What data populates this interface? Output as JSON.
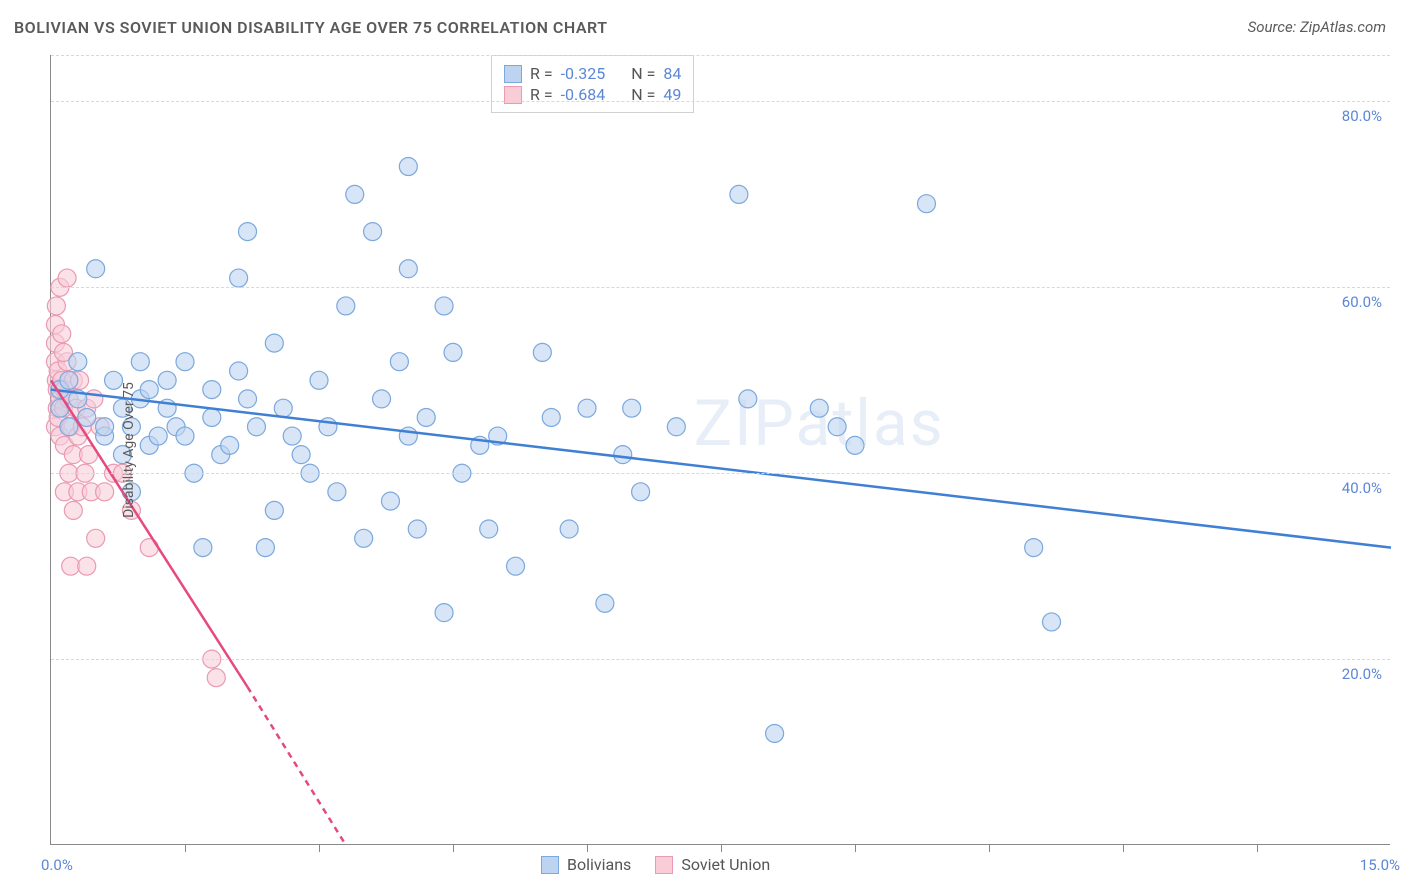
{
  "title": "BOLIVIAN VS SOVIET UNION DISABILITY AGE OVER 75 CORRELATION CHART",
  "source_prefix": "Source: ",
  "source": "ZipAtlas.com",
  "ylabel": "Disability Age Over 75",
  "watermark": "ZIPatlas",
  "chart": {
    "type": "scatter",
    "xlim": [
      0,
      15
    ],
    "ylim": [
      0,
      85
    ],
    "x_start_label": "0.0%",
    "x_end_label": "15.0%",
    "y_ticks": [
      20,
      40,
      60,
      80
    ],
    "y_tick_labels": [
      "20.0%",
      "40.0%",
      "60.0%",
      "80.0%"
    ],
    "x_tick_positions": [
      1.5,
      3.0,
      4.5,
      6.0,
      7.5,
      9.0,
      10.5,
      12.0,
      13.5
    ],
    "grid_color": "#d8d8d8",
    "background_color": "#ffffff",
    "marker_radius": 9,
    "series": {
      "bolivians": {
        "label": "Bolivians",
        "fill": "#bcd4f0",
        "stroke": "#7ba8de",
        "line_color": "#3f7fd4",
        "line_width": 2.5,
        "line_y1": 49,
        "line_y2": 32,
        "R": "-0.325",
        "N": "84",
        "points": [
          [
            0.1,
            49
          ],
          [
            0.1,
            47
          ],
          [
            0.2,
            50
          ],
          [
            0.2,
            45
          ],
          [
            0.3,
            48
          ],
          [
            0.3,
            52
          ],
          [
            0.4,
            46
          ],
          [
            0.5,
            62
          ],
          [
            0.6,
            44
          ],
          [
            0.7,
            50
          ],
          [
            0.8,
            47
          ],
          [
            0.8,
            42
          ],
          [
            0.9,
            45
          ],
          [
            1.0,
            48
          ],
          [
            1.0,
            52
          ],
          [
            1.1,
            43
          ],
          [
            1.2,
            44
          ],
          [
            1.3,
            47
          ],
          [
            1.3,
            50
          ],
          [
            1.4,
            45
          ],
          [
            1.5,
            52
          ],
          [
            1.5,
            44
          ],
          [
            1.6,
            40
          ],
          [
            1.7,
            32
          ],
          [
            1.8,
            46
          ],
          [
            1.9,
            42
          ],
          [
            2.0,
            43
          ],
          [
            2.1,
            61
          ],
          [
            2.2,
            66
          ],
          [
            2.3,
            45
          ],
          [
            2.4,
            32
          ],
          [
            2.5,
            36
          ],
          [
            2.5,
            54
          ],
          [
            2.6,
            47
          ],
          [
            2.7,
            44
          ],
          [
            2.8,
            42
          ],
          [
            2.9,
            40
          ],
          [
            3.0,
            50
          ],
          [
            3.1,
            45
          ],
          [
            3.2,
            38
          ],
          [
            3.3,
            58
          ],
          [
            3.4,
            70
          ],
          [
            3.5,
            33
          ],
          [
            3.6,
            66
          ],
          [
            3.8,
            37
          ],
          [
            4.0,
            73
          ],
          [
            4.0,
            44
          ],
          [
            4.0,
            62
          ],
          [
            4.1,
            34
          ],
          [
            4.2,
            46
          ],
          [
            4.4,
            58
          ],
          [
            4.4,
            25
          ],
          [
            4.5,
            53
          ],
          [
            4.8,
            43
          ],
          [
            4.9,
            34
          ],
          [
            5.0,
            44
          ],
          [
            5.2,
            30
          ],
          [
            5.5,
            53
          ],
          [
            5.8,
            34
          ],
          [
            6.0,
            47
          ],
          [
            6.2,
            26
          ],
          [
            6.5,
            47
          ],
          [
            6.6,
            38
          ],
          [
            7.0,
            45
          ],
          [
            7.7,
            70
          ],
          [
            7.8,
            48
          ],
          [
            8.1,
            12
          ],
          [
            8.6,
            47
          ],
          [
            8.8,
            45
          ],
          [
            9.0,
            43
          ],
          [
            9.8,
            69
          ],
          [
            11.0,
            32
          ],
          [
            11.2,
            24
          ],
          [
            3.7,
            48
          ],
          [
            1.1,
            49
          ],
          [
            0.9,
            38
          ],
          [
            2.2,
            48
          ],
          [
            6.4,
            42
          ],
          [
            4.6,
            40
          ],
          [
            0.6,
            45
          ],
          [
            3.9,
            52
          ],
          [
            5.6,
            46
          ],
          [
            2.1,
            51
          ],
          [
            1.8,
            49
          ]
        ]
      },
      "soviet": {
        "label": "Soviet Union",
        "fill": "#f8cdd8",
        "stroke": "#ea9ab2",
        "line_color": "#e54980",
        "line_width": 2.5,
        "line_solid_x1": 0,
        "line_solid_y1": 50,
        "line_solid_x2": 2.2,
        "line_solid_y2": 17,
        "line_dash_x2": 3.3,
        "line_dash_y2": 0,
        "R": "-0.684",
        "N": "49",
        "points": [
          [
            0.05,
            56
          ],
          [
            0.05,
            54
          ],
          [
            0.05,
            52
          ],
          [
            0.05,
            45
          ],
          [
            0.06,
            58
          ],
          [
            0.06,
            50
          ],
          [
            0.07,
            49
          ],
          [
            0.07,
            47
          ],
          [
            0.08,
            46
          ],
          [
            0.08,
            51
          ],
          [
            0.1,
            48
          ],
          [
            0.1,
            44
          ],
          [
            0.1,
            60
          ],
          [
            0.12,
            55
          ],
          [
            0.12,
            50
          ],
          [
            0.14,
            47
          ],
          [
            0.15,
            49
          ],
          [
            0.15,
            43
          ],
          [
            0.15,
            38
          ],
          [
            0.18,
            61
          ],
          [
            0.18,
            52
          ],
          [
            0.2,
            48
          ],
          [
            0.2,
            40
          ],
          [
            0.22,
            30
          ],
          [
            0.22,
            45
          ],
          [
            0.25,
            50
          ],
          [
            0.25,
            42
          ],
          [
            0.25,
            36
          ],
          [
            0.28,
            47
          ],
          [
            0.3,
            44
          ],
          [
            0.3,
            38
          ],
          [
            0.32,
            50
          ],
          [
            0.35,
            45
          ],
          [
            0.38,
            40
          ],
          [
            0.4,
            47
          ],
          [
            0.42,
            42
          ],
          [
            0.45,
            38
          ],
          [
            0.48,
            48
          ],
          [
            0.5,
            33
          ],
          [
            0.55,
            45
          ],
          [
            0.6,
            38
          ],
          [
            0.4,
            30
          ],
          [
            0.7,
            40
          ],
          [
            0.8,
            40
          ],
          [
            0.9,
            36
          ],
          [
            1.1,
            32
          ],
          [
            1.8,
            20
          ],
          [
            1.85,
            18
          ],
          [
            0.14,
            53
          ]
        ]
      }
    }
  },
  "legend": {
    "r_label": "R =",
    "n_label": "N ="
  }
}
